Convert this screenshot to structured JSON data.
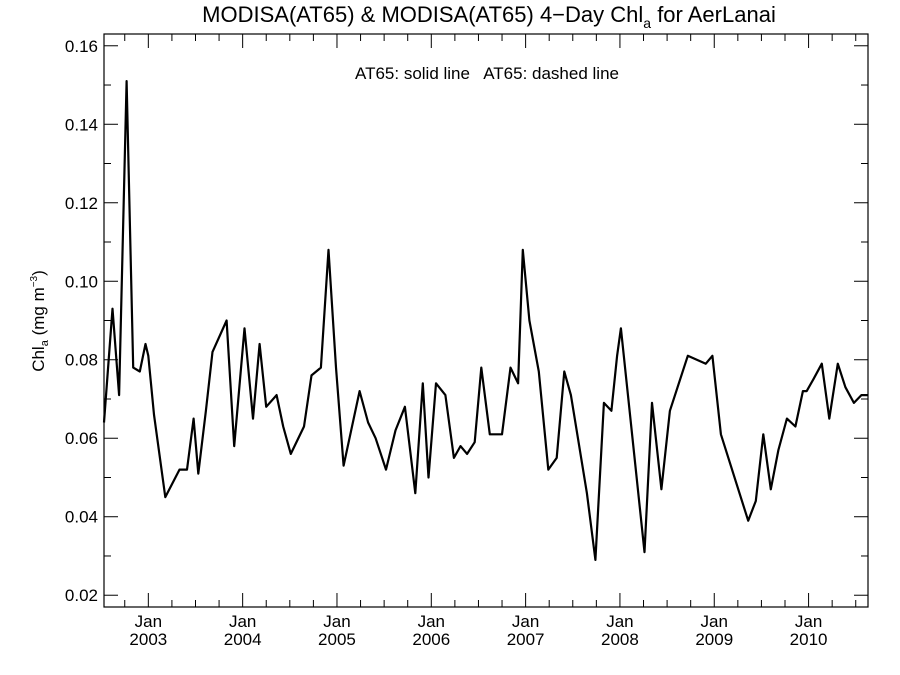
{
  "chart_data": {
    "type": "line",
    "title": {
      "main": "MODISA(AT65) & MODISA(AT65) 4−Day Chl",
      "sub": "a",
      "tail": " for AerLanai"
    },
    "annotation": "AT65: solid line   AT65: dashed line",
    "ylabel": {
      "main": "Chl",
      "sub": "a",
      "unit": " (mg m",
      "sup": "−3",
      "close": ")"
    },
    "ylim": [
      0.017,
      0.163
    ],
    "yticks": [
      0.02,
      0.04,
      0.06,
      0.08,
      0.1,
      0.12,
      0.14,
      0.16
    ],
    "ytick_labels": [
      "0.02",
      "0.04",
      "0.06",
      "0.08",
      "0.10",
      "0.12",
      "0.14",
      "0.16"
    ],
    "xlim": [
      2002.53,
      2010.63
    ],
    "xticks": [
      {
        "value": 2003.0,
        "month": "Jan",
        "year": "2003"
      },
      {
        "value": 2004.0,
        "month": "Jan",
        "year": "2004"
      },
      {
        "value": 2005.0,
        "month": "Jan",
        "year": "2005"
      },
      {
        "value": 2006.0,
        "month": "Jan",
        "year": "2006"
      },
      {
        "value": 2007.0,
        "month": "Jan",
        "year": "2007"
      },
      {
        "value": 2008.0,
        "month": "Jan",
        "year": "2008"
      },
      {
        "value": 2009.0,
        "month": "Jan",
        "year": "2009"
      },
      {
        "value": 2010.0,
        "month": "Jan",
        "year": "2010"
      }
    ],
    "series": [
      {
        "style": "solid",
        "color": "#000000",
        "x": [
          2002.53,
          2002.62,
          2002.69,
          2002.77,
          2002.84,
          2002.91,
          2002.97,
          2003.0,
          2003.06,
          2003.18,
          2003.33,
          2003.41,
          2003.48,
          2003.53,
          2003.61,
          2003.68,
          2003.83,
          2003.91,
          2004.02,
          2004.11,
          2004.18,
          2004.25,
          2004.36,
          2004.43,
          2004.51,
          2004.65,
          2004.73,
          2004.83,
          2004.91,
          2004.99,
          2005.07,
          2005.24,
          2005.33,
          2005.41,
          2005.52,
          2005.62,
          2005.72,
          2005.83,
          2005.91,
          2005.97,
          2006.05,
          2006.15,
          2006.24,
          2006.31,
          2006.38,
          2006.46,
          2006.53,
          2006.62,
          2006.75,
          2006.84,
          2006.92,
          2006.97,
          2007.04,
          2007.14,
          2007.24,
          2007.33,
          2007.41,
          2007.48,
          2007.65,
          2007.74,
          2007.83,
          2007.91,
          2007.97,
          2008.01,
          2008.26,
          2008.34,
          2008.44,
          2008.53,
          2008.72,
          2008.91,
          2008.98,
          2009.07,
          2009.36,
          2009.44,
          2009.52,
          2009.6,
          2009.68,
          2009.77,
          2009.86,
          2009.94,
          2009.98,
          2010.05,
          2010.14,
          2010.22,
          2010.31,
          2010.39,
          2010.48,
          2010.56,
          2010.63
        ],
        "y": [
          0.064,
          0.093,
          0.071,
          0.151,
          0.078,
          0.077,
          0.084,
          0.081,
          0.066,
          0.045,
          0.052,
          0.052,
          0.065,
          0.051,
          0.067,
          0.082,
          0.09,
          0.058,
          0.088,
          0.065,
          0.084,
          0.068,
          0.071,
          0.063,
          0.056,
          0.063,
          0.076,
          0.078,
          0.108,
          0.078,
          0.053,
          0.072,
          0.064,
          0.06,
          0.052,
          0.062,
          0.068,
          0.046,
          0.074,
          0.05,
          0.074,
          0.071,
          0.055,
          0.058,
          0.056,
          0.059,
          0.078,
          0.061,
          0.061,
          0.078,
          0.074,
          0.108,
          0.09,
          0.077,
          0.052,
          0.055,
          0.077,
          0.071,
          0.046,
          0.029,
          0.069,
          0.067,
          0.081,
          0.088,
          0.031,
          0.069,
          0.047,
          0.067,
          0.081,
          0.079,
          0.081,
          0.061,
          0.039,
          0.044,
          0.061,
          0.047,
          0.057,
          0.065,
          0.063,
          0.072,
          0.072,
          0.075,
          0.079,
          0.065,
          0.079,
          0.073,
          0.069,
          0.071,
          0.071
        ]
      }
    ],
    "grid": false,
    "ticks_mirrored": true
  }
}
